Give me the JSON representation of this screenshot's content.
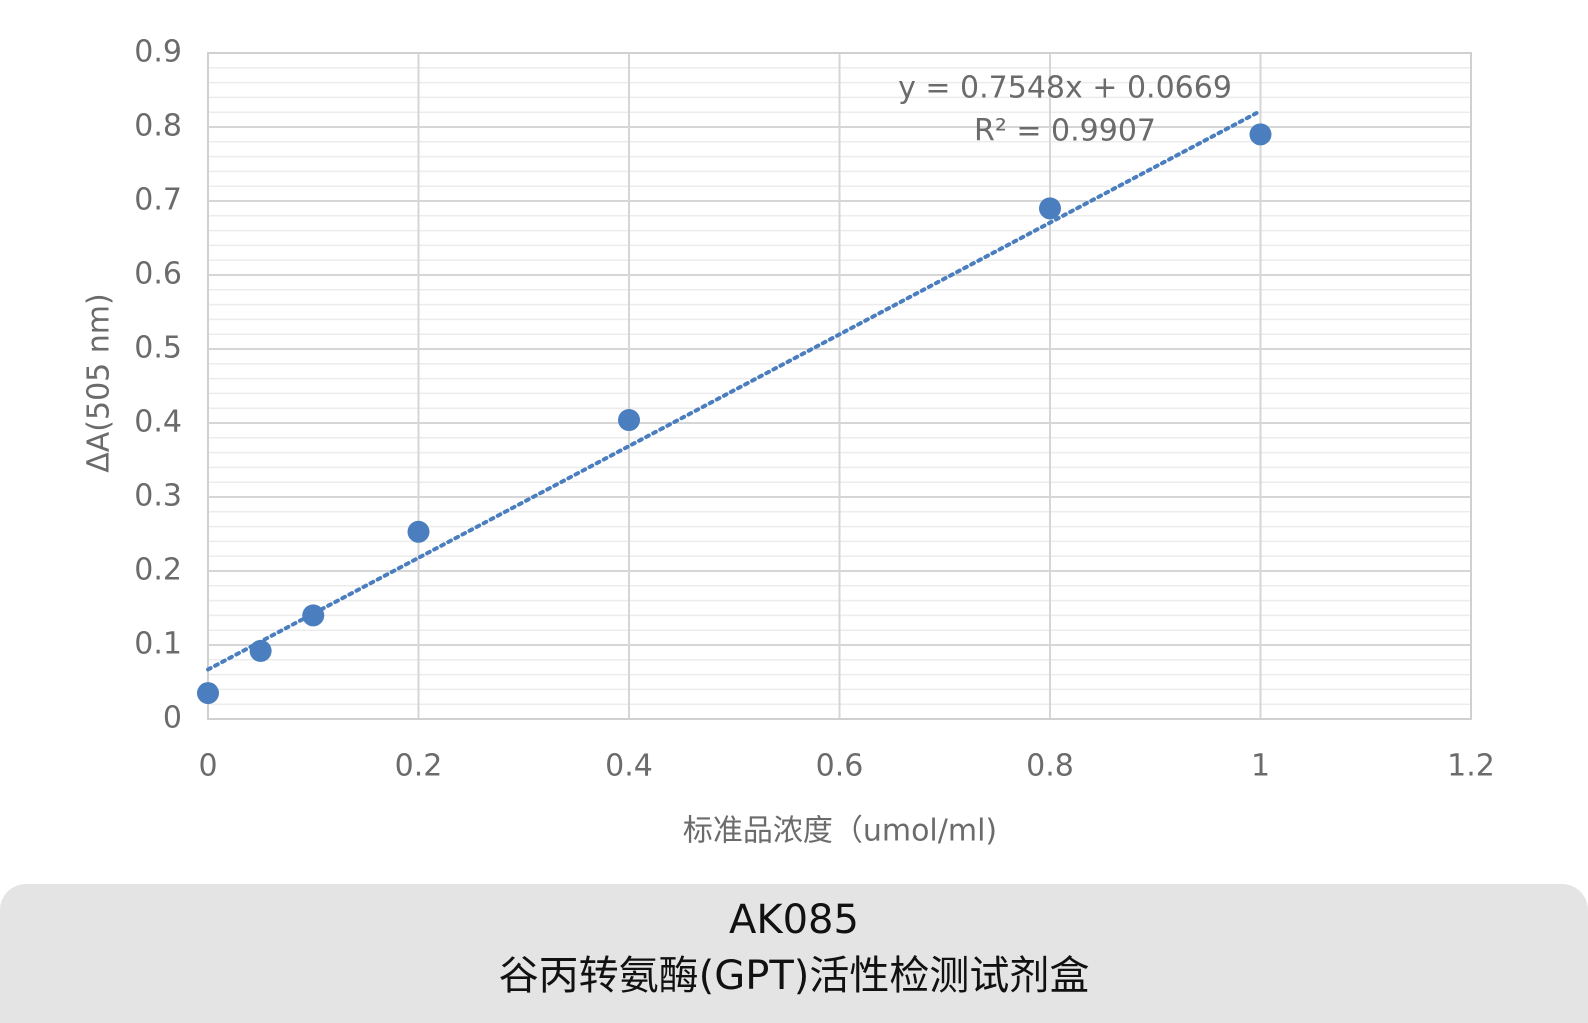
{
  "chart_data": {
    "type": "scatter",
    "x_label": "标准品浓度（umol/ml)",
    "y_label": "ΔA(505 nm)",
    "x": [
      0,
      0.05,
      0.1,
      0.2,
      0.4,
      0.8,
      1
    ],
    "series": [
      {
        "color": "#4a7ebf",
        "values": [
          0.035,
          0.092,
          0.14,
          0.253,
          0.404,
          0.69,
          0.79
        ]
      }
    ],
    "trendline": {
      "slope": 0.7548,
      "intercept": 0.0669,
      "equation": "y = 0.7548x + 0.0669",
      "r2_label": "R² = 0.9907",
      "style": "dotted"
    },
    "xlim": [
      0,
      1.2
    ],
    "xticks": [
      0,
      0.2,
      0.4,
      0.6,
      0.8,
      1,
      1.2
    ],
    "ylim": [
      0,
      0.9
    ],
    "yticks": [
      0,
      0.1,
      0.2,
      0.3,
      0.4,
      0.5,
      0.6,
      0.7,
      0.8,
      0.9
    ],
    "grid": true,
    "y_minor_step": 0.02
  },
  "caption": {
    "code": "AK085",
    "name": "谷丙转氨酶(GPT)活性检测试剂盒"
  }
}
